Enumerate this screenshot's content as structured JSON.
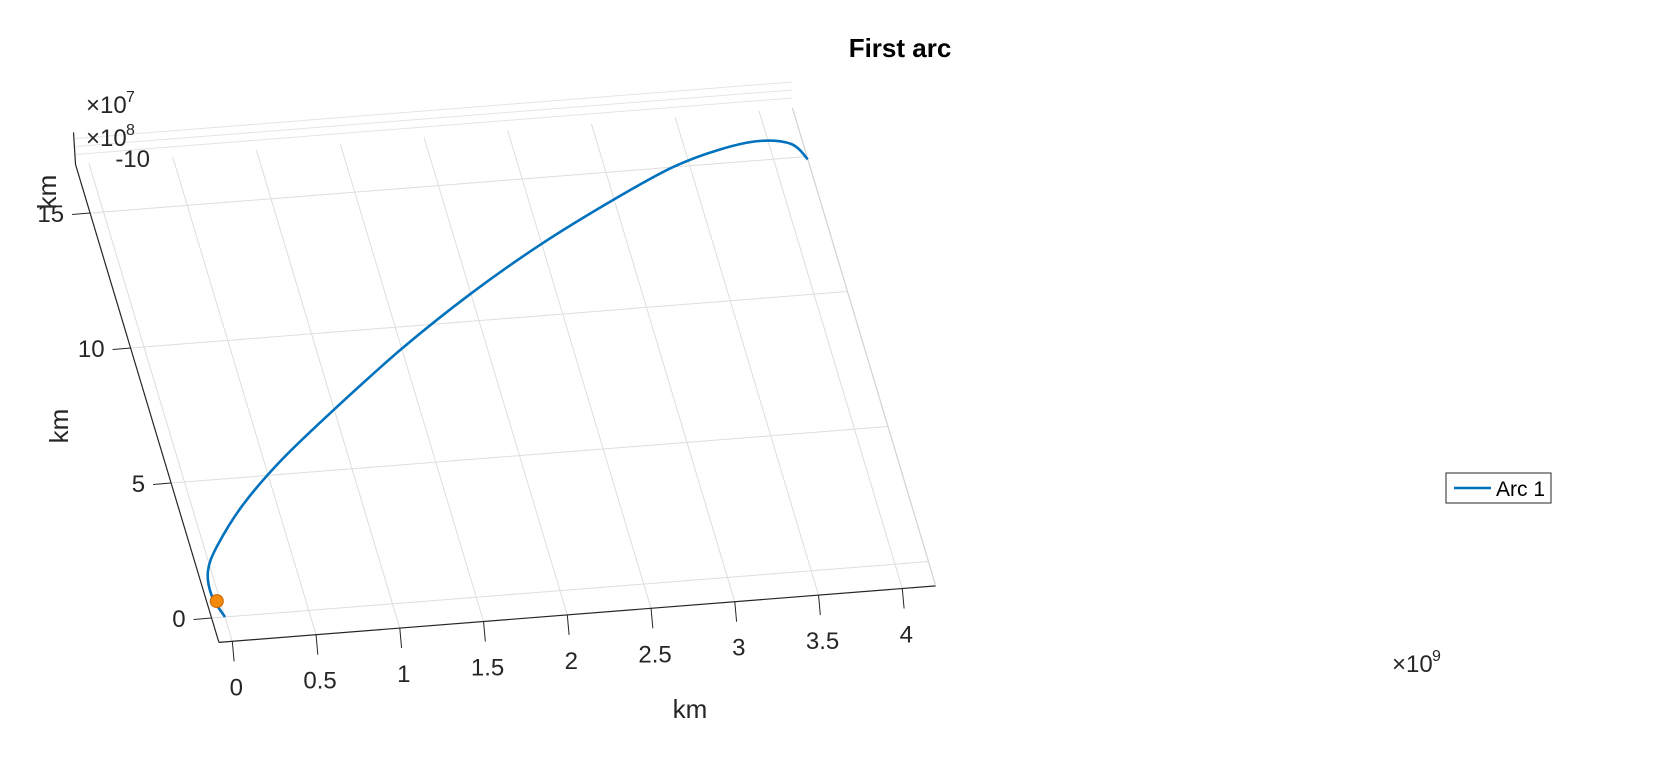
{
  "chart_data": {
    "type": "line",
    "title": "First arc",
    "xlabel": "km",
    "ylabel": "km",
    "zlabel": "km",
    "x_exponent_base": "×10",
    "x_exponent": "9",
    "y_exponent_base": "×10",
    "y_exponent": "8",
    "z_exponent_base": "×10",
    "z_exponent": "7",
    "x_ticks": [
      "0",
      "0.5",
      "1",
      "1.5",
      "2",
      "2.5",
      "3",
      "3.5",
      "4"
    ],
    "y_ticks": [
      "0",
      "5",
      "10",
      "15"
    ],
    "z_ticks": [
      "-10"
    ],
    "grid": true,
    "legend_position": "bottom-right",
    "series": [
      {
        "name": "Arc 1",
        "color": "#0072BD",
        "x": [
          0,
          -0.04,
          -0.02,
          0.08,
          0.3,
          0.6,
          1.0,
          1.5,
          2.0,
          2.5,
          3.0,
          3.4,
          3.7,
          3.95,
          4.13,
          4.2
        ],
        "y": [
          0,
          0.8,
          1.7,
          2.6,
          4.0,
          5.5,
          7.2,
          9.2,
          11.0,
          12.6,
          14.0,
          15.0,
          15.5,
          15.7,
          15.5,
          14.9
        ]
      }
    ],
    "markers": [
      {
        "color": "#F58A0A",
        "x": -0.02,
        "y": 0.6
      }
    ]
  }
}
